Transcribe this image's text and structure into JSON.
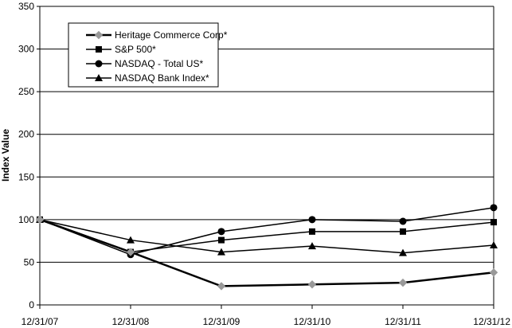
{
  "chart_data": {
    "type": "line",
    "title": "",
    "xlabel": "",
    "ylabel": "Index Value",
    "x": [
      "12/31/07",
      "12/31/08",
      "12/31/09",
      "12/31/10",
      "12/31/11",
      "12/31/12"
    ],
    "yticks": [
      0,
      50,
      100,
      150,
      200,
      250,
      300,
      350
    ],
    "ylim": [
      0,
      350
    ],
    "grid": "horizontal",
    "legend_position": "top-left",
    "series": [
      {
        "name": "Heritage Commerce Corp*",
        "marker": "diamond",
        "color": "#000000",
        "marker_color": "#999999",
        "values": [
          100,
          62,
          22,
          24,
          26,
          38
        ]
      },
      {
        "name": "S&P 500*",
        "marker": "square",
        "color": "#000000",
        "marker_color": "#000000",
        "values": [
          100,
          62,
          76,
          86,
          86,
          97
        ]
      },
      {
        "name": "NASDAQ - Total US*",
        "marker": "circle",
        "color": "#000000",
        "marker_color": "#000000",
        "values": [
          100,
          59,
          86,
          100,
          98,
          114
        ]
      },
      {
        "name": "NASDAQ Bank Index*",
        "marker": "triangle",
        "color": "#000000",
        "marker_color": "#000000",
        "values": [
          100,
          76,
          62,
          69,
          61,
          70
        ]
      }
    ]
  }
}
